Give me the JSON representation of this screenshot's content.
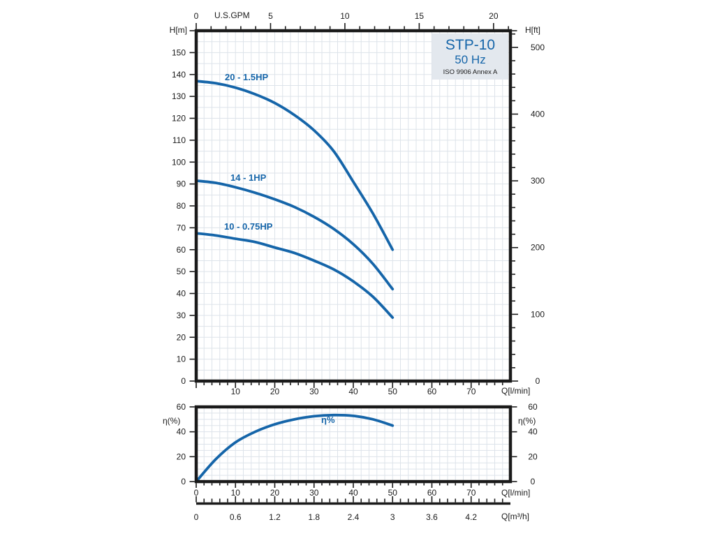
{
  "colors": {
    "curve_blue": "#1565a9",
    "grid": "#dde3ea",
    "axis_ink": "#1a1a1a",
    "title_box_bg": "#e3e8ee",
    "background": "#ffffff"
  },
  "title_box": {
    "model": "STP-10",
    "frequency": "50 Hz",
    "standard": "ISO 9906 Annex A"
  },
  "labels": {
    "top_axis_unit": "U.S.GPM",
    "left_axis_unit": "H[m]",
    "right_axis_unit": "H[ft]",
    "flow_lmin": "Q[l/min]",
    "flow_m3h": "Q[m³/h]",
    "efficiency_unit": "η(%)"
  },
  "axes": {
    "top_gpm": {
      "ticks": [
        0,
        5,
        10,
        15,
        20
      ],
      "minor_step_gpm": 1,
      "lmin_per_gpm": 3.785411784
    },
    "left_m": {
      "ticks": [
        0,
        10,
        20,
        30,
        40,
        50,
        60,
        70,
        80,
        90,
        100,
        110,
        120,
        130,
        140,
        150
      ],
      "max_m": 160
    },
    "right_ft": {
      "ticks": [
        0,
        100,
        200,
        300,
        400,
        500
      ],
      "minor_step_ft": 20,
      "m_per_ft": 0.3048,
      "max_ft": 520
    },
    "bottom_lmin_main": {
      "ticks": [
        10,
        20,
        30,
        40,
        50,
        60,
        70
      ],
      "minor_step": 2,
      "max": 80
    },
    "eff_percent": {
      "ticks": [
        0,
        20,
        40,
        60
      ],
      "max": 60
    },
    "bottom_lmin_eff": {
      "ticks": [
        0,
        10,
        20,
        30,
        40,
        50,
        60,
        70
      ],
      "minor_step": 2
    },
    "bottom_m3h": {
      "tick_labels": [
        "0",
        "0.6",
        "1.2",
        "1.8",
        "2.4",
        "3",
        "3.6",
        "4.2"
      ],
      "lmin_positions": [
        0,
        10,
        20,
        30,
        40,
        50,
        60,
        70
      ]
    }
  },
  "chart_data": [
    {
      "type": "line",
      "title": "STP-10 50 Hz head curves",
      "xlabel": "Q[l/min]",
      "ylabel": "H[m]",
      "xlim": [
        0,
        80
      ],
      "ylim": [
        0,
        160
      ],
      "grid": "on",
      "grid_step_x_lmin": 2,
      "grid_step_y_m": 5,
      "x": [
        0,
        5,
        10,
        15,
        20,
        25,
        30,
        35,
        40,
        45,
        50
      ],
      "series": [
        {
          "name": "20 - 1.5HP",
          "values": [
            137,
            136,
            134,
            131,
            127,
            121.5,
            114.5,
            105,
            91,
            76.5,
            60
          ]
        },
        {
          "name": "14 - 1HP",
          "values": [
            91.5,
            90.5,
            88.5,
            86,
            83,
            79.5,
            75,
            69.5,
            62.5,
            53.5,
            42
          ]
        },
        {
          "name": "10 - 0.75HP",
          "values": [
            67.5,
            66.5,
            65,
            63.5,
            61,
            58.5,
            55,
            51,
            45.5,
            38.5,
            29
          ]
        }
      ]
    },
    {
      "type": "line",
      "title": "Efficiency curve",
      "xlabel": "Q[l/min]",
      "ylabel": "η(%)",
      "xlim": [
        0,
        80
      ],
      "ylim": [
        0,
        60
      ],
      "grid": "on",
      "grid_step_x_lmin": 2,
      "grid_step_y_pct": 5,
      "x": [
        0,
        5,
        10,
        15,
        20,
        25,
        30,
        35,
        40,
        45,
        50
      ],
      "series": [
        {
          "name": "η%",
          "values": [
            0,
            18,
            31.5,
            40,
            46,
            50,
            52.5,
            53.4,
            52.8,
            50,
            45
          ]
        }
      ]
    }
  ]
}
